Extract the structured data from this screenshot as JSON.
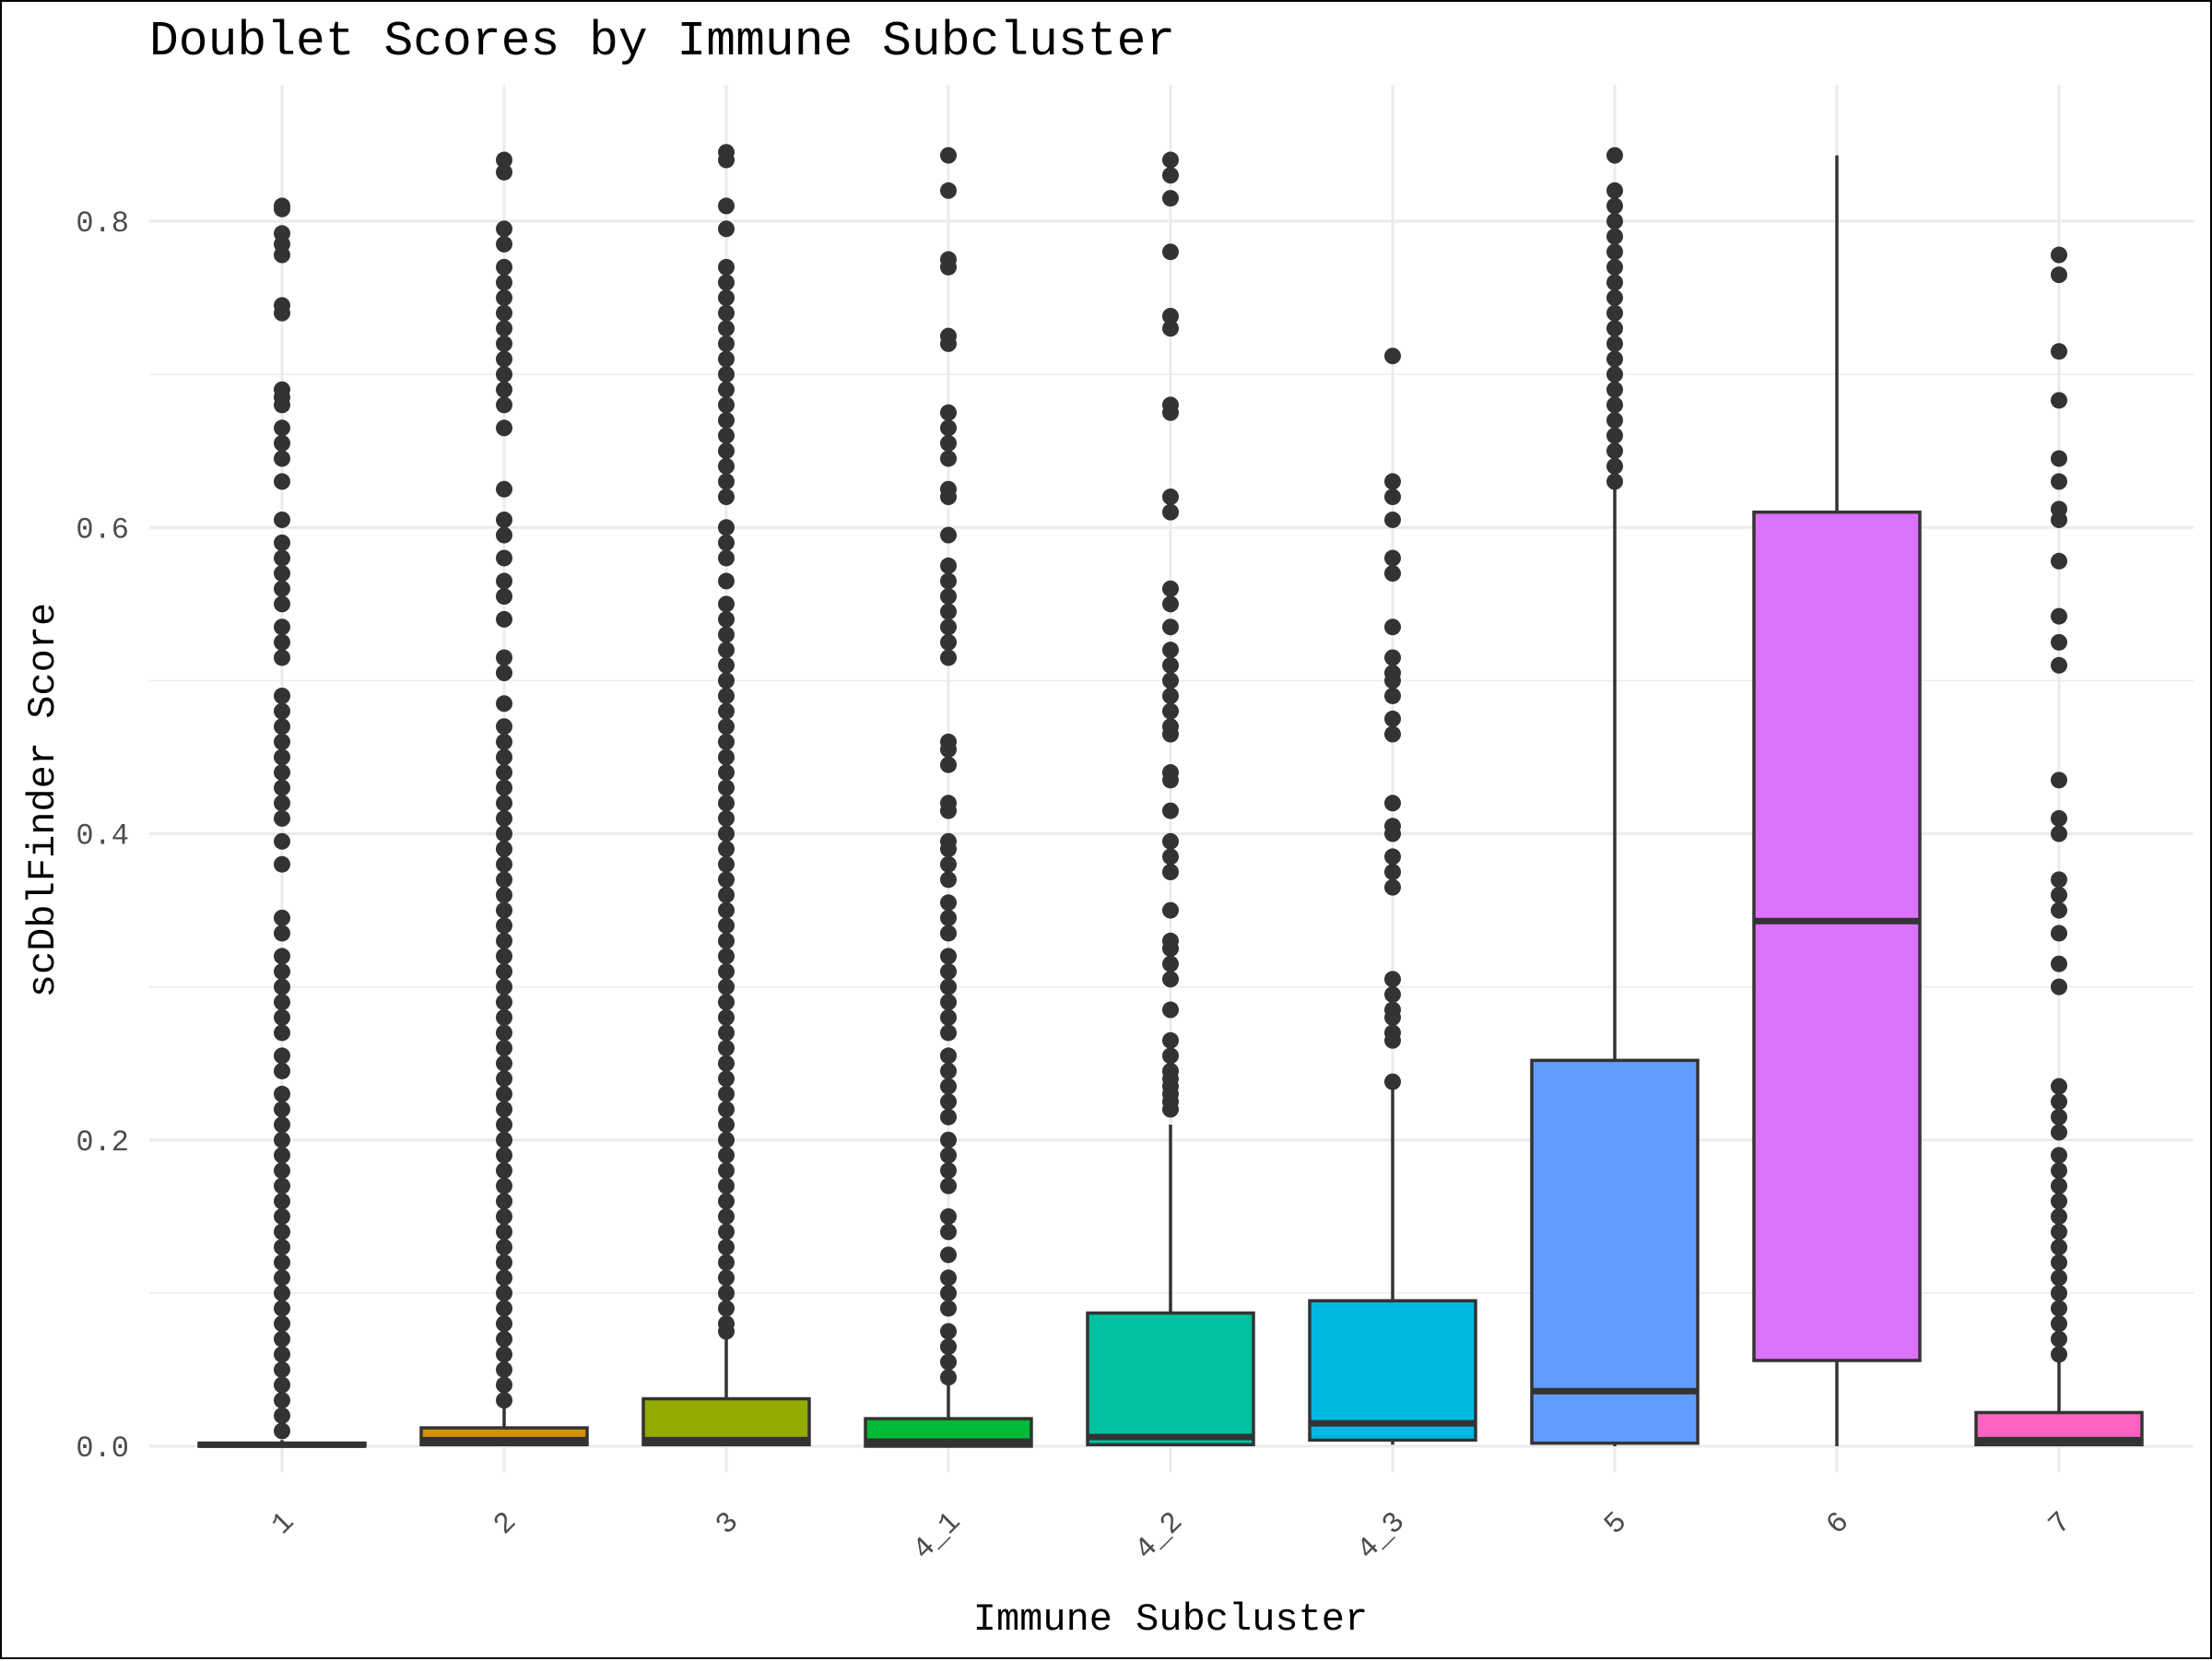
{
  "chart_data": {
    "type": "boxplot",
    "title": "Doublet Scores by Immune Subcluster",
    "xlabel": "Immune Subcluster",
    "ylabel": "scDblFinder Score",
    "ylim": [
      -0.05,
      0.88
    ],
    "yticks": [
      "0.0",
      "0.2",
      "0.4",
      "0.6",
      "0.8"
    ],
    "grid": true,
    "legend": "none",
    "categories": [
      "1",
      "2",
      "3",
      "4_1",
      "4_2",
      "4_3",
      "5",
      "6",
      "7"
    ],
    "series": [
      {
        "category": "1",
        "color": "#F8766D",
        "q1": 0.0,
        "median": 0.001,
        "q3": 0.002,
        "whisker_low": 0.0,
        "whisker_high": 0.004,
        "outliers": [
          0.81,
          0.808,
          0.792,
          0.785,
          0.778,
          0.745,
          0.74,
          0.69,
          0.685,
          0.68,
          0.665,
          0.655,
          0.645,
          0.63,
          0.605,
          0.59,
          0.58,
          0.57,
          0.56,
          0.55,
          0.535,
          0.525,
          0.515,
          0.49,
          0.48,
          0.47,
          0.46,
          0.45,
          0.44,
          0.43,
          0.42,
          0.41,
          0.395,
          0.38,
          0.345,
          0.335,
          0.32,
          0.31,
          0.3,
          0.29,
          0.28,
          0.27,
          0.255,
          0.245,
          0.23,
          0.22,
          0.21,
          0.2,
          0.19,
          0.18,
          0.17,
          0.16,
          0.15,
          0.14,
          0.13,
          0.12,
          0.11,
          0.1,
          0.09,
          0.08,
          0.07,
          0.06,
          0.05,
          0.04,
          0.03,
          0.02,
          0.01
        ]
      },
      {
        "category": "2",
        "color": "#D39200",
        "q1": 0.001,
        "median": 0.004,
        "q3": 0.012,
        "whisker_low": 0.0,
        "whisker_high": 0.027,
        "outliers": [
          0.84,
          0.832,
          0.795,
          0.785,
          0.77,
          0.76,
          0.75,
          0.74,
          0.73,
          0.72,
          0.71,
          0.7,
          0.69,
          0.68,
          0.665,
          0.625,
          0.605,
          0.595,
          0.58,
          0.565,
          0.555,
          0.54,
          0.515,
          0.505,
          0.485,
          0.47,
          0.46,
          0.45,
          0.44,
          0.43,
          0.42,
          0.41,
          0.4,
          0.39,
          0.38,
          0.37,
          0.36,
          0.35,
          0.34,
          0.33,
          0.32,
          0.31,
          0.3,
          0.29,
          0.28,
          0.27,
          0.26,
          0.25,
          0.24,
          0.23,
          0.22,
          0.21,
          0.2,
          0.19,
          0.18,
          0.17,
          0.16,
          0.15,
          0.14,
          0.13,
          0.12,
          0.11,
          0.1,
          0.09,
          0.08,
          0.07,
          0.06,
          0.05,
          0.04,
          0.03
        ]
      },
      {
        "category": "3",
        "color": "#93AA00",
        "q1": 0.001,
        "median": 0.004,
        "q3": 0.031,
        "whisker_low": 0.0,
        "whisker_high": 0.072,
        "outliers": [
          0.845,
          0.84,
          0.81,
          0.795,
          0.77,
          0.76,
          0.75,
          0.74,
          0.73,
          0.72,
          0.71,
          0.7,
          0.69,
          0.68,
          0.67,
          0.66,
          0.65,
          0.64,
          0.63,
          0.62,
          0.6,
          0.59,
          0.58,
          0.565,
          0.55,
          0.54,
          0.53,
          0.52,
          0.51,
          0.5,
          0.49,
          0.48,
          0.47,
          0.46,
          0.45,
          0.44,
          0.43,
          0.42,
          0.41,
          0.4,
          0.39,
          0.38,
          0.37,
          0.36,
          0.35,
          0.34,
          0.33,
          0.32,
          0.31,
          0.3,
          0.29,
          0.28,
          0.27,
          0.26,
          0.25,
          0.24,
          0.23,
          0.22,
          0.21,
          0.2,
          0.19,
          0.18,
          0.17,
          0.16,
          0.15,
          0.14,
          0.13,
          0.12,
          0.11,
          0.1,
          0.09,
          0.08,
          0.075
        ]
      },
      {
        "category": "4_1",
        "color": "#00BA38",
        "q1": 0.0,
        "median": 0.003,
        "q3": 0.018,
        "whisker_low": 0.0,
        "whisker_high": 0.04,
        "outliers": [
          0.843,
          0.82,
          0.775,
          0.77,
          0.725,
          0.72,
          0.675,
          0.665,
          0.655,
          0.645,
          0.625,
          0.62,
          0.595,
          0.575,
          0.565,
          0.555,
          0.545,
          0.535,
          0.525,
          0.515,
          0.46,
          0.455,
          0.445,
          0.42,
          0.415,
          0.395,
          0.39,
          0.38,
          0.37,
          0.355,
          0.345,
          0.335,
          0.32,
          0.31,
          0.3,
          0.29,
          0.28,
          0.27,
          0.255,
          0.245,
          0.235,
          0.225,
          0.215,
          0.2,
          0.19,
          0.18,
          0.17,
          0.15,
          0.14,
          0.125,
          0.11,
          0.1,
          0.09,
          0.075,
          0.065,
          0.055,
          0.045
        ]
      },
      {
        "category": "4_2",
        "color": "#00C19F",
        "q1": 0.001,
        "median": 0.006,
        "q3": 0.087,
        "whisker_low": 0.0,
        "whisker_high": 0.21,
        "outliers": [
          0.84,
          0.83,
          0.815,
          0.78,
          0.738,
          0.73,
          0.68,
          0.675,
          0.62,
          0.61,
          0.56,
          0.55,
          0.535,
          0.52,
          0.51,
          0.5,
          0.49,
          0.48,
          0.47,
          0.465,
          0.44,
          0.435,
          0.415,
          0.395,
          0.385,
          0.375,
          0.35,
          0.33,
          0.325,
          0.315,
          0.305,
          0.285,
          0.265,
          0.255,
          0.245,
          0.24,
          0.235,
          0.23,
          0.225,
          0.22
        ]
      },
      {
        "category": "4_3",
        "color": "#00B9E3",
        "q1": 0.004,
        "median": 0.015,
        "q3": 0.095,
        "whisker_low": 0.001,
        "whisker_high": 0.235,
        "outliers": [
          0.712,
          0.63,
          0.62,
          0.605,
          0.58,
          0.57,
          0.535,
          0.515,
          0.505,
          0.5,
          0.49,
          0.475,
          0.465,
          0.42,
          0.405,
          0.4,
          0.385,
          0.375,
          0.365,
          0.305,
          0.295,
          0.285,
          0.28,
          0.27,
          0.265,
          0.238
        ]
      },
      {
        "category": "5",
        "color": "#619CFF",
        "q1": 0.002,
        "median": 0.036,
        "q3": 0.252,
        "whisker_low": 0.0,
        "whisker_high": 0.625,
        "outliers": [
          0.843,
          0.82,
          0.81,
          0.8,
          0.79,
          0.78,
          0.77,
          0.76,
          0.75,
          0.74,
          0.73,
          0.72,
          0.71,
          0.7,
          0.69,
          0.68,
          0.67,
          0.66,
          0.65,
          0.64,
          0.63
        ]
      },
      {
        "category": "6",
        "color": "#DB72FB",
        "q1": 0.056,
        "median": 0.343,
        "q3": 0.61,
        "whisker_low": 0.0,
        "whisker_high": 0.843,
        "outliers": []
      },
      {
        "category": "7",
        "color": "#FF61C3",
        "q1": 0.001,
        "median": 0.004,
        "q3": 0.022,
        "whisker_low": 0.0,
        "whisker_high": 0.055,
        "outliers": [
          0.778,
          0.765,
          0.715,
          0.683,
          0.645,
          0.63,
          0.612,
          0.605,
          0.578,
          0.542,
          0.525,
          0.51,
          0.435,
          0.41,
          0.4,
          0.37,
          0.36,
          0.35,
          0.335,
          0.315,
          0.3,
          0.235,
          0.225,
          0.215,
          0.205,
          0.19,
          0.18,
          0.17,
          0.16,
          0.15,
          0.14,
          0.13,
          0.12,
          0.11,
          0.1,
          0.09,
          0.08,
          0.07,
          0.06
        ]
      }
    ]
  }
}
